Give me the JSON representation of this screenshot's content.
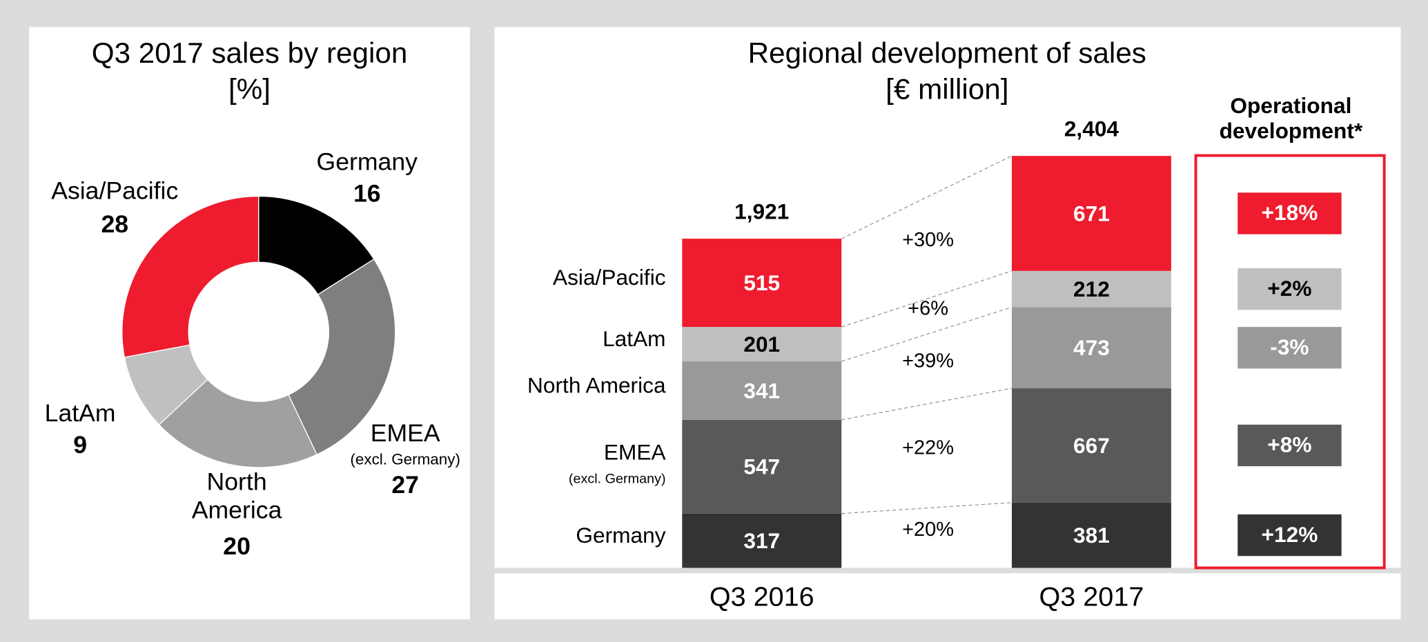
{
  "chart_data": [
    {
      "type": "pie",
      "title": "Q3 2017 sales by region",
      "subtitle": "[%]",
      "categories": [
        "Germany",
        "EMEA",
        "North America",
        "LatAm",
        "Asia/Pacific"
      ],
      "emea_note": "(excl. Germany)",
      "values": [
        16,
        27,
        20,
        9,
        28
      ],
      "colors": [
        "#000000",
        "#7f7f7f",
        "#a0a0a0",
        "#c0c0c0",
        "#ee1c2e"
      ]
    },
    {
      "type": "stacked_bar",
      "title": "Regional development of sales",
      "subtitle": "[€ million]",
      "categories": [
        "Q3 2016",
        "Q3 2017"
      ],
      "series": [
        {
          "name": "Germany",
          "color": "#333333",
          "values": [
            317,
            381
          ],
          "growth": 20,
          "growth_label": "+20%",
          "operational": 12,
          "operational_label": "+12%"
        },
        {
          "name": "EMEA",
          "note": "(excl. Germany)",
          "color": "#595959",
          "values": [
            547,
            667
          ],
          "growth": 22,
          "growth_label": "+22%",
          "operational": 8,
          "operational_label": "+8%"
        },
        {
          "name": "North America",
          "color": "#999999",
          "values": [
            341,
            473
          ],
          "growth": 39,
          "growth_label": "+39%",
          "operational": -3,
          "operational_label": "-3%"
        },
        {
          "name": "LatAm",
          "color": "#bfbfbf",
          "values": [
            201,
            212
          ],
          "growth": 6,
          "growth_label": "+6%",
          "operational": 2,
          "operational_label": "+2%"
        },
        {
          "name": "Asia/Pacific",
          "color": "#ee1c2e",
          "values": [
            515,
            671
          ],
          "growth": 30,
          "growth_label": "+30%",
          "operational": 18,
          "operational_label": "+18%"
        }
      ],
      "totals": [
        1921,
        2404
      ],
      "total_labels": [
        "1,921",
        "2,404"
      ],
      "operational_title": "Operational development*",
      "operational_box_color": "#ee1c2e"
    }
  ]
}
